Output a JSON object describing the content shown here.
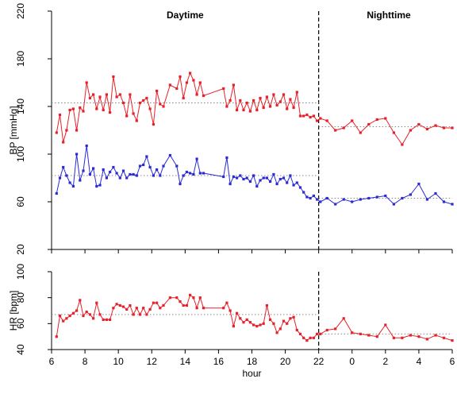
{
  "chart_data": [
    {
      "type": "line",
      "panel": "bp",
      "ylabel": "BP [mmHg]",
      "xlabel": "",
      "ylim": [
        20,
        220
      ],
      "yticks": [
        "20",
        "60",
        "100",
        "140",
        "180",
        "220"
      ],
      "yticks_values": [
        20,
        60,
        100,
        140,
        180,
        220
      ],
      "annotations": [
        {
          "text": "Daytime",
          "x": 14
        },
        {
          "text": "Nighttime",
          "x": 26.2
        }
      ],
      "divider_x": 22,
      "series": [
        {
          "name": "",
          "color": "#e8202a",
          "mean_day": 143,
          "mean_night": 123,
          "x": [
            6.3,
            6.5,
            6.7,
            6.9,
            7.1,
            7.3,
            7.5,
            7.7,
            7.9,
            8.1,
            8.3,
            8.5,
            8.7,
            8.9,
            9.1,
            9.3,
            9.5,
            9.7,
            9.9,
            10.1,
            10.3,
            10.5,
            10.7,
            10.9,
            11.1,
            11.3,
            11.5,
            11.7,
            11.9,
            12.1,
            12.3,
            12.5,
            12.7,
            13.1,
            13.5,
            13.7,
            13.9,
            14.1,
            14.3,
            14.5,
            14.7,
            14.9,
            15.1,
            16.3,
            16.5,
            16.7,
            16.9,
            17.1,
            17.3,
            17.5,
            17.7,
            17.9,
            18.1,
            18.3,
            18.5,
            18.7,
            18.9,
            19.1,
            19.3,
            19.5,
            19.7,
            19.9,
            20.1,
            20.3,
            20.5,
            20.7,
            20.9,
            21.1,
            21.3,
            21.5,
            21.7,
            21.9,
            22.1,
            22.5,
            23,
            23.5,
            24,
            24.5,
            25,
            25.5,
            26,
            26.5,
            27,
            27.5,
            28,
            28.5,
            29,
            29.5,
            30
          ],
          "y": [
            118,
            133,
            110,
            120,
            137,
            138,
            120,
            139,
            136,
            160,
            147,
            150,
            138,
            148,
            137,
            150,
            135,
            165,
            148,
            150,
            143,
            132,
            150,
            134,
            128,
            143,
            145,
            147,
            138,
            125,
            153,
            142,
            140,
            158,
            155,
            165,
            147,
            160,
            168,
            162,
            150,
            160,
            149,
            155,
            140,
            145,
            158,
            137,
            145,
            137,
            143,
            136,
            145,
            137,
            147,
            139,
            148,
            140,
            150,
            141,
            144,
            150,
            138,
            146,
            139,
            152,
            132,
            132,
            133,
            131,
            132,
            128,
            130,
            128,
            120,
            122,
            128,
            118,
            125,
            129,
            130,
            118,
            108,
            120,
            125,
            121,
            124,
            122,
            122
          ]
        },
        {
          "name": "",
          "color": "#2b2bd6",
          "mean_day": 82,
          "mean_night": 63,
          "x": [
            6.3,
            6.5,
            6.7,
            6.9,
            7.1,
            7.3,
            7.5,
            7.7,
            7.9,
            8.1,
            8.3,
            8.5,
            8.7,
            8.9,
            9.1,
            9.3,
            9.5,
            9.7,
            9.9,
            10.1,
            10.3,
            10.5,
            10.7,
            10.9,
            11.1,
            11.3,
            11.5,
            11.7,
            11.9,
            12.1,
            12.3,
            12.5,
            12.7,
            13.1,
            13.5,
            13.7,
            13.9,
            14.1,
            14.3,
            14.5,
            14.7,
            14.9,
            15.1,
            16.3,
            16.5,
            16.7,
            16.9,
            17.1,
            17.3,
            17.5,
            17.7,
            17.9,
            18.1,
            18.3,
            18.5,
            18.7,
            18.9,
            19.1,
            19.3,
            19.5,
            19.7,
            19.9,
            20.1,
            20.3,
            20.5,
            20.7,
            20.9,
            21.1,
            21.3,
            21.5,
            21.7,
            21.9,
            22.1,
            22.5,
            23,
            23.5,
            24,
            24.5,
            25,
            25.5,
            26,
            26.5,
            27,
            27.5,
            28,
            28.5,
            29,
            29.5,
            30
          ],
          "y": [
            67,
            80,
            89,
            82,
            76,
            73,
            100,
            78,
            86,
            107,
            83,
            88,
            73,
            74,
            87,
            80,
            85,
            89,
            84,
            80,
            86,
            80,
            83,
            83,
            82,
            90,
            91,
            98,
            89,
            82,
            87,
            82,
            90,
            99,
            90,
            75,
            82,
            85,
            84,
            83,
            96,
            84,
            84,
            81,
            97,
            75,
            81,
            80,
            82,
            79,
            80,
            77,
            82,
            73,
            78,
            80,
            80,
            77,
            83,
            75,
            79,
            80,
            76,
            82,
            74,
            76,
            72,
            68,
            64,
            63,
            65,
            62,
            60,
            63,
            58,
            62,
            60,
            62,
            63,
            64,
            65,
            58,
            63,
            66,
            75,
            62,
            67,
            60,
            58
          ]
        }
      ]
    },
    {
      "type": "line",
      "panel": "hr",
      "ylabel": "HR [bpm]",
      "xlabel": "hour",
      "ylim": [
        40,
        100
      ],
      "yticks": [
        "40",
        "60",
        "80",
        "100"
      ],
      "yticks_values": [
        40,
        60,
        80,
        100
      ],
      "xlim": [
        6,
        30
      ],
      "xticks": [
        "6",
        "8",
        "10",
        "12",
        "14",
        "16",
        "18",
        "20",
        "22",
        "0",
        "2",
        "4",
        "6"
      ],
      "xticks_values": [
        6,
        8,
        10,
        12,
        14,
        16,
        18,
        20,
        22,
        24,
        26,
        28,
        30
      ],
      "divider_x": 22,
      "series": [
        {
          "name": "",
          "color": "#e8202a",
          "mean_day": 67,
          "mean_night": 52,
          "x": [
            6.3,
            6.5,
            6.7,
            6.9,
            7.1,
            7.3,
            7.5,
            7.7,
            7.9,
            8.1,
            8.3,
            8.5,
            8.7,
            8.9,
            9.1,
            9.3,
            9.5,
            9.7,
            9.9,
            10.1,
            10.3,
            10.5,
            10.7,
            10.9,
            11.1,
            11.3,
            11.5,
            11.7,
            11.9,
            12.1,
            12.3,
            12.5,
            12.7,
            13.1,
            13.5,
            13.7,
            13.9,
            14.1,
            14.3,
            14.5,
            14.7,
            14.9,
            15.1,
            16.3,
            16.5,
            16.7,
            16.9,
            17.1,
            17.3,
            17.5,
            17.7,
            17.9,
            18.1,
            18.3,
            18.5,
            18.7,
            18.9,
            19.1,
            19.3,
            19.5,
            19.7,
            19.9,
            20.1,
            20.3,
            20.5,
            20.7,
            20.9,
            21.1,
            21.3,
            21.5,
            21.7,
            21.9,
            22.1,
            22.5,
            23,
            23.5,
            24,
            24.5,
            25,
            25.5,
            26,
            26.5,
            27,
            27.5,
            28,
            28.5,
            29,
            29.5,
            30
          ],
          "y": [
            50,
            66,
            62,
            64,
            66,
            68,
            70,
            78,
            66,
            69,
            67,
            64,
            76,
            67,
            63,
            63,
            63,
            72,
            75,
            74,
            73,
            71,
            74,
            67,
            72,
            67,
            72,
            67,
            71,
            76,
            76,
            72,
            74,
            80,
            80,
            77,
            74,
            74,
            82,
            80,
            72,
            80,
            72,
            72,
            76,
            70,
            58,
            68,
            64,
            61,
            63,
            61,
            59,
            58,
            59,
            60,
            74,
            63,
            60,
            53,
            56,
            62,
            60,
            64,
            65,
            55,
            52,
            49,
            47,
            49,
            49,
            52,
            52,
            55,
            56,
            64,
            53,
            52,
            51,
            50,
            59,
            49,
            49,
            51,
            50,
            48,
            51,
            49,
            47
          ]
        }
      ]
    }
  ]
}
